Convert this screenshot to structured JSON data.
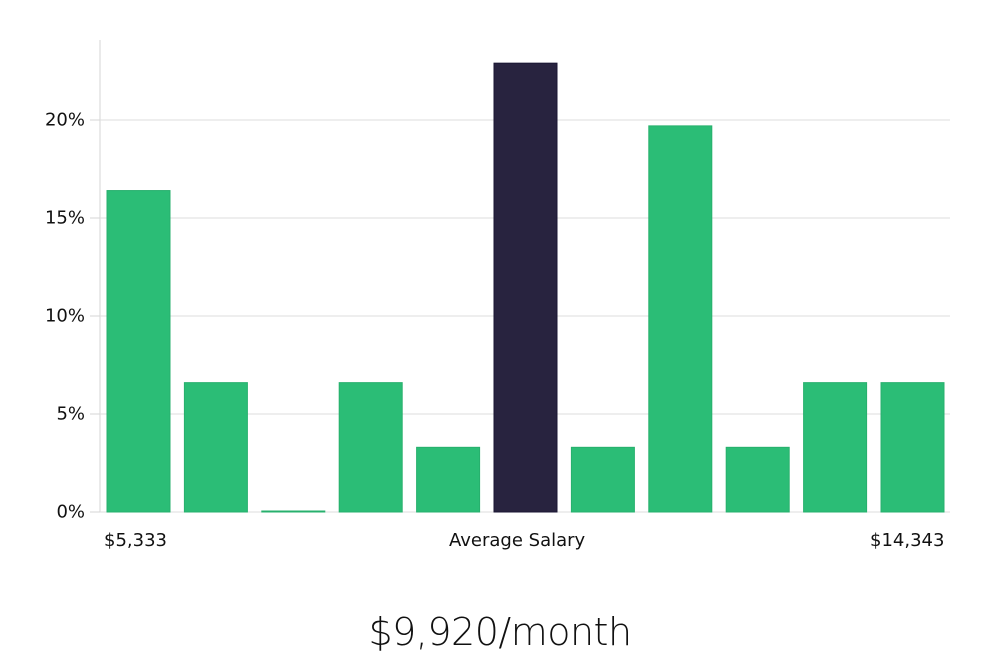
{
  "chart_data": {
    "type": "bar",
    "title": "",
    "xlabel": "Average Salary",
    "ylabel": "",
    "x_range_labels": {
      "min": "$5,333",
      "max": "$14,343"
    },
    "categories": [
      "bin1",
      "bin2",
      "bin3",
      "bin4",
      "bin5",
      "bin6",
      "bin7",
      "bin8",
      "bin9",
      "bin10",
      "bin11"
    ],
    "values": [
      16.4,
      6.6,
      0.0,
      6.6,
      3.3,
      22.9,
      3.3,
      19.7,
      3.3,
      6.6,
      6.6
    ],
    "highlight_index": 5,
    "yticks": [
      0,
      5,
      10,
      15,
      20
    ],
    "ytick_labels": [
      "0%",
      "5%",
      "10%",
      "15%",
      "20%"
    ],
    "ylim": [
      0,
      24
    ],
    "grid": true,
    "colors": {
      "bar": "#2bbd76",
      "highlight": "#28233f",
      "grid": "#dddddd",
      "axis": "#d6d6d6"
    }
  },
  "labels": {
    "x_min": "$5,333",
    "x_center": "Average Salary",
    "x_max": "$14,343"
  },
  "summary": {
    "value": "$9,920/month"
  }
}
